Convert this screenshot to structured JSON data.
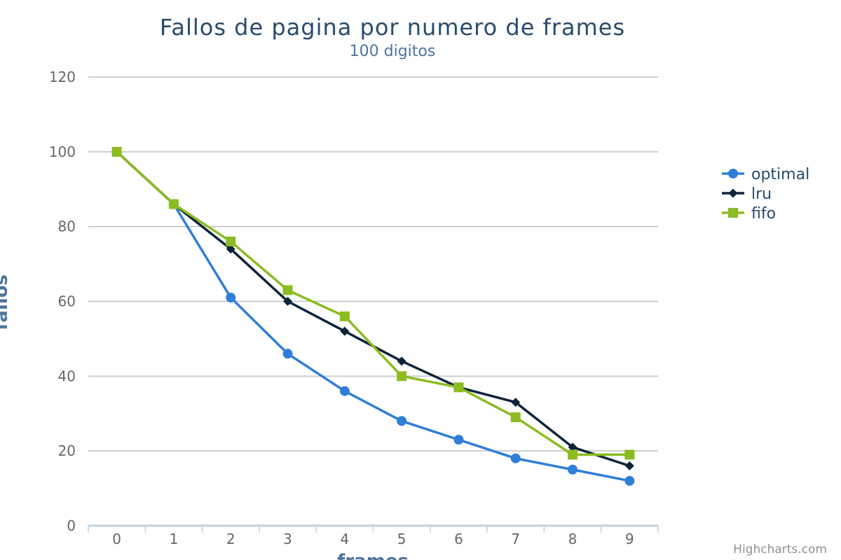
{
  "chart_data": {
    "type": "line",
    "title": "Fallos de pagina por numero de frames",
    "subtitle": "100 digitos",
    "xlabel": "frames",
    "ylabel": "fallos",
    "categories": [
      "0",
      "1",
      "2",
      "3",
      "4",
      "5",
      "6",
      "7",
      "8",
      "9"
    ],
    "ylim": [
      0,
      120
    ],
    "yticks": [
      0,
      20,
      40,
      60,
      80,
      100,
      120
    ],
    "grid": true,
    "legend_position": "right",
    "series": [
      {
        "name": "optimal",
        "color": "#2f7ed8",
        "marker": "circle",
        "values": [
          100,
          86,
          61,
          46,
          36,
          28,
          23,
          18,
          15,
          12
        ]
      },
      {
        "name": "lru",
        "color": "#0d233a",
        "marker": "diamond",
        "values": [
          100,
          86,
          74,
          60,
          52,
          44,
          37,
          33,
          21,
          16
        ]
      },
      {
        "name": "fifo",
        "color": "#8bbc21",
        "marker": "square",
        "values": [
          100,
          86,
          76,
          63,
          56,
          40,
          37,
          29,
          19,
          19
        ]
      }
    ]
  },
  "credits": "Highcharts.com"
}
